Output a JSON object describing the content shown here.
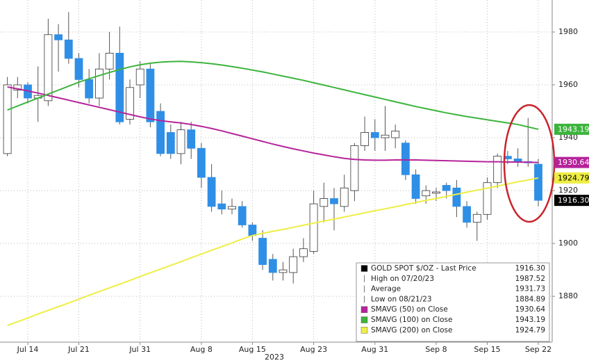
{
  "chart_data": {
    "type": "candlestick",
    "x_label": "2023",
    "categories": [
      null,
      null,
      "Jul 14",
      null,
      null,
      null,
      null,
      "Jul 21",
      null,
      null,
      null,
      null,
      null,
      "Jul 31",
      null,
      null,
      null,
      null,
      null,
      "Aug 8",
      null,
      null,
      null,
      null,
      "Aug 15",
      null,
      null,
      null,
      null,
      null,
      "Aug 23",
      null,
      null,
      null,
      null,
      null,
      "Aug 31",
      null,
      null,
      null,
      null,
      null,
      "Sep 8",
      null,
      null,
      null,
      null,
      "Sep 15",
      null,
      null,
      null,
      null,
      "Sep 22"
    ],
    "ylim": [
      1863.2,
      1992.1
    ],
    "yticks": [
      1880,
      1900,
      1920,
      1940,
      1960,
      1980
    ],
    "grid": true,
    "series": [
      {
        "name": "GOLD SPOT $/OZ - Last Price",
        "type": "candlestick",
        "up_color": "#ffffff",
        "down_color": "#2f8fe6",
        "last_price": {
          "value": 1916.3,
          "label": "1916.30"
        },
        "open": [
          1934,
          1958,
          1960,
          1955,
          1954,
          1979,
          1977,
          1970,
          1962,
          1955,
          1966,
          1972,
          1947,
          1960,
          1966,
          1950,
          1942,
          1934,
          1943,
          1936,
          1925,
          1915,
          1913,
          1914,
          1907,
          1902,
          1894,
          1889,
          1889,
          1895,
          1897,
          1914,
          1917,
          1914,
          1920,
          1937,
          1942,
          1940,
          1940,
          1938,
          1926,
          1918,
          1919,
          1922,
          1921,
          1914,
          1908,
          1911,
          1923,
          1933,
          1932,
          1931,
          1930
        ],
        "high": [
          1963,
          1963,
          1961,
          1967,
          1985,
          1983,
          1987.52,
          1972,
          1966,
          1972,
          1980,
          1982,
          1962,
          1969,
          1968,
          1953,
          1945,
          1946,
          1946,
          1938,
          1930,
          1920,
          1917,
          1916,
          1908,
          1905,
          1896,
          1893,
          1898,
          1902,
          1920,
          1923,
          1921,
          1926,
          1938,
          1948,
          1947,
          1952,
          1945,
          1939,
          1928,
          1922,
          1921,
          1923,
          1924,
          1916,
          1912,
          1925,
          1934,
          1935,
          1936,
          1947.5,
          1932
        ],
        "low": [
          1933,
          1955,
          1953,
          1946,
          1952,
          1965,
          1968,
          1959,
          1953,
          1952,
          1962,
          1945,
          1945,
          1955,
          1944,
          1933,
          1932,
          1930,
          1932,
          1921,
          1912,
          1911,
          1911,
          1906,
          1901,
          1890,
          1886,
          1886,
          1884.89,
          1893,
          1896,
          1908,
          1905,
          1912,
          1916,
          1935,
          1935,
          1935,
          1936,
          1924,
          1915,
          1915,
          1916,
          1917,
          1910,
          1906,
          1901,
          1909,
          1921,
          1930,
          1929,
          1929,
          1914
        ],
        "close": [
          1960,
          1960,
          1955,
          1956,
          1979,
          1977,
          1970,
          1962,
          1955,
          1966,
          1972,
          1946,
          1959,
          1966,
          1946,
          1934,
          1934,
          1943,
          1936,
          1925,
          1914,
          1913,
          1914,
          1907,
          1903,
          1892,
          1889,
          1890,
          1895,
          1898,
          1915,
          1917,
          1915,
          1921,
          1937,
          1942,
          1940,
          1941,
          1942.5,
          1926,
          1917,
          1920,
          1919.5,
          1920,
          1914,
          1908,
          1911,
          1923,
          1933,
          1932,
          1931,
          1930.5,
          1916.3
        ]
      },
      {
        "name": "SMAVG (50)  on Close",
        "type": "line",
        "color": "#b5239a",
        "values": [
          1959.2,
          1958.5,
          1957.7,
          1956.9,
          1956.0,
          1955.1,
          1954.2,
          1953.3,
          1952.4,
          1951.5,
          1950.6,
          1949.7,
          1948.8,
          1947.9,
          1947.1,
          1946.5,
          1946.0,
          1945.6,
          1945.0,
          1944.3,
          1943.5,
          1942.6,
          1941.6,
          1940.6,
          1939.6,
          1938.6,
          1937.6,
          1936.7,
          1935.8,
          1935.0,
          1934.2,
          1933.5,
          1932.8,
          1932.2,
          1931.8,
          1931.6,
          1931.5,
          1931.5,
          1931.6,
          1931.6,
          1931.6,
          1931.5,
          1931.4,
          1931.3,
          1931.2,
          1931.1,
          1931.0,
          1930.9,
          1930.9,
          1930.8,
          1930.8,
          1930.7,
          1930.64
        ]
      },
      {
        "name": "SMAVG (100)  on Close",
        "type": "line",
        "color": "#3cb43c",
        "values": [
          1950.5,
          1952.0,
          1953.5,
          1955.0,
          1956.5,
          1958.0,
          1959.5,
          1961.0,
          1962.3,
          1963.5,
          1964.7,
          1965.8,
          1966.8,
          1967.6,
          1968.2,
          1968.6,
          1968.8,
          1968.9,
          1968.7,
          1968.4,
          1968.0,
          1967.5,
          1966.9,
          1966.3,
          1965.6,
          1964.9,
          1964.1,
          1963.3,
          1962.5,
          1961.7,
          1960.8,
          1959.9,
          1959.0,
          1958.1,
          1957.2,
          1956.3,
          1955.4,
          1954.5,
          1953.6,
          1952.7,
          1951.8,
          1951.0,
          1950.2,
          1949.4,
          1948.7,
          1948.0,
          1947.4,
          1946.8,
          1946.2,
          1945.6,
          1945.0,
          1944.1,
          1943.19
        ]
      },
      {
        "name": "SMAVG (200)  on Close",
        "type": "line",
        "color": "#eeee44",
        "values": [
          1869.0,
          1870.4,
          1871.8,
          1873.3,
          1874.7,
          1876.1,
          1877.5,
          1878.9,
          1880.4,
          1881.8,
          1883.2,
          1884.6,
          1886.0,
          1887.5,
          1888.9,
          1890.3,
          1891.7,
          1893.1,
          1894.6,
          1896.0,
          1897.4,
          1898.8,
          1900.2,
          1901.7,
          1903.0,
          1903.8,
          1904.6,
          1905.3,
          1906.1,
          1906.9,
          1907.7,
          1908.5,
          1909.2,
          1910.0,
          1910.8,
          1911.6,
          1912.4,
          1913.1,
          1913.9,
          1914.7,
          1915.5,
          1916.3,
          1917.0,
          1917.8,
          1918.6,
          1919.4,
          1920.2,
          1920.9,
          1921.7,
          1922.5,
          1923.3,
          1924.0,
          1924.79
        ]
      }
    ],
    "stats": [
      {
        "label": "High on 07/20/23",
        "value": 1987.52
      },
      {
        "label": "Average",
        "value": 1931.73
      },
      {
        "label": "Low on 08/21/23",
        "value": 1884.89
      }
    ]
  }
}
